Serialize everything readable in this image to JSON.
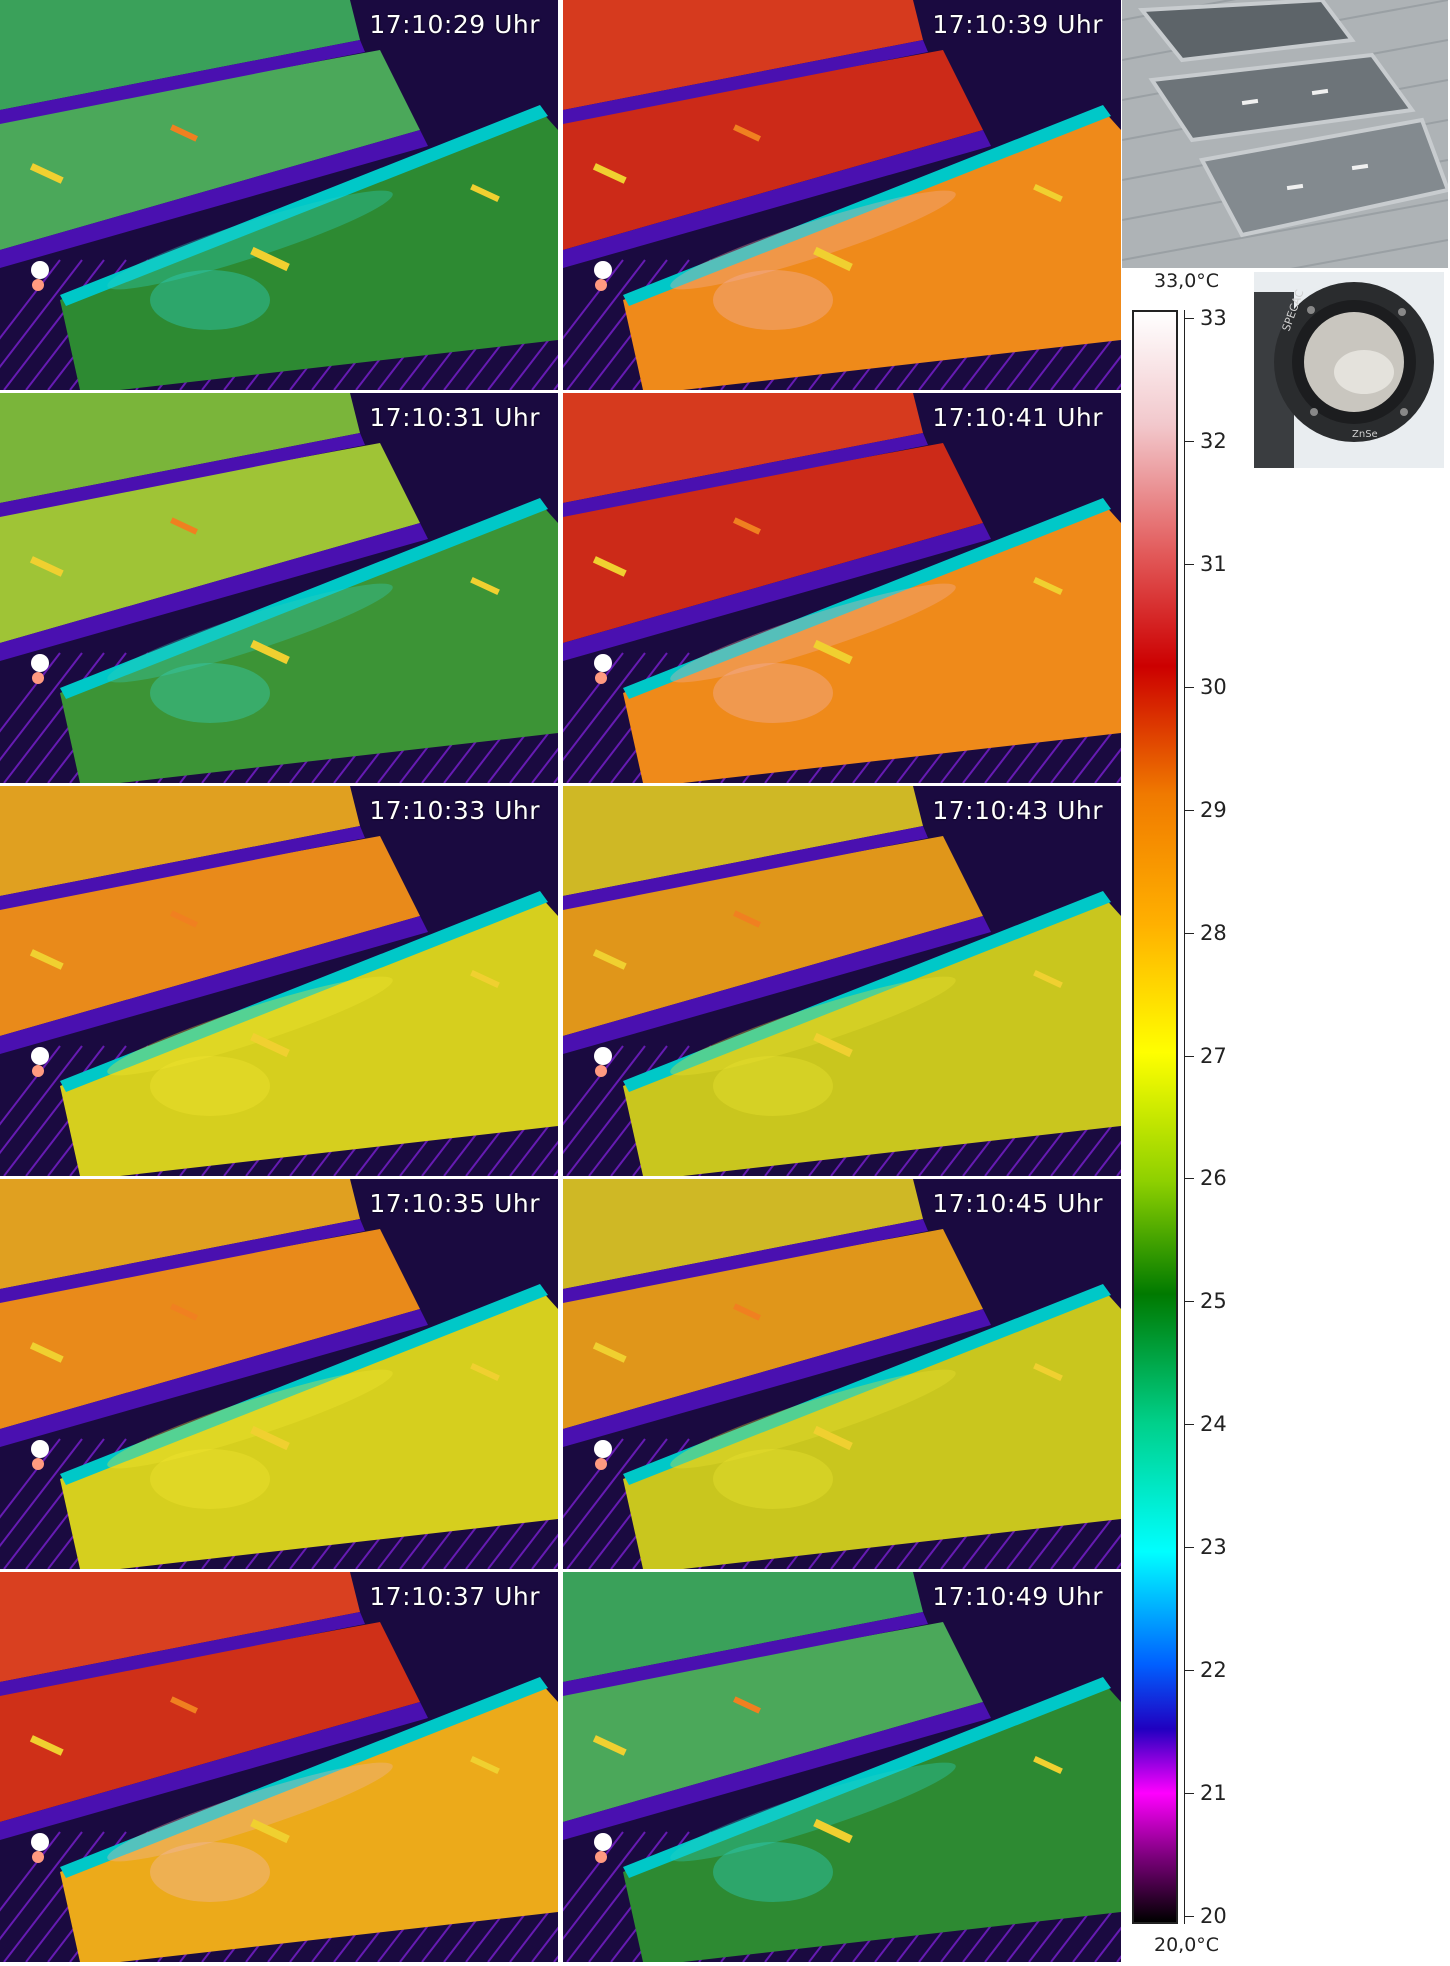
{
  "frames": [
    {
      "time": "17:10:29 Uhr",
      "palette": "cool"
    },
    {
      "time": "17:10:39 Uhr",
      "palette": "hot"
    },
    {
      "time": "17:10:31 Uhr",
      "palette": "cool2"
    },
    {
      "time": "17:10:41 Uhr",
      "palette": "hot"
    },
    {
      "time": "17:10:33 Uhr",
      "palette": "warm"
    },
    {
      "time": "17:10:43 Uhr",
      "palette": "warm2"
    },
    {
      "time": "17:10:35 Uhr",
      "palette": "warm"
    },
    {
      "time": "17:10:45 Uhr",
      "palette": "warm2"
    },
    {
      "time": "17:10:37 Uhr",
      "palette": "hot2"
    },
    {
      "time": "17:10:49 Uhr",
      "palette": "cool"
    }
  ],
  "colorbar": {
    "max_label": "33,0°C",
    "min_label": "20,0°C",
    "ticks": [
      "33",
      "32",
      "31",
      "30",
      "29",
      "28",
      "27",
      "26",
      "25",
      "24",
      "23",
      "22",
      "21",
      "20"
    ]
  },
  "lens_photo": {
    "brand": "SPECAC",
    "material": "ZnSe"
  },
  "colors": {
    "cool": "#2e8b3a",
    "cool2": "#4a9a2a",
    "warm": "#e3c21a",
    "warm2": "#c7c71e",
    "hot": "#d83a1a",
    "hot2": "#cf4a14",
    "stripe": "#4a00b0",
    "edge": "#00d0d0"
  }
}
